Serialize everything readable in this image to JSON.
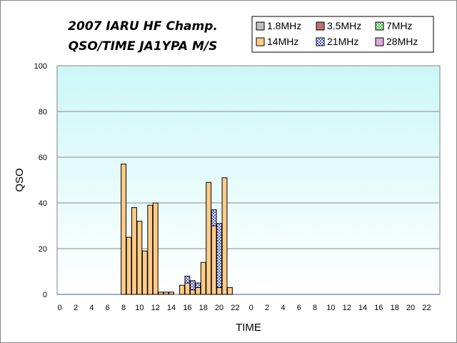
{
  "chart_data": {
    "type": "bar",
    "stacked": true,
    "title": [
      "2007 IARU HF Champ.",
      "QSO/TIME  JA1YPA  M/S"
    ],
    "xlabel": "TIME",
    "ylabel": "QSO",
    "ylim": [
      0,
      100
    ],
    "yticks": [
      "0",
      "20",
      "40",
      "60",
      "80",
      "100"
    ],
    "grid": true,
    "legend_position": "top-right",
    "categories": [
      "0",
      "1",
      "2",
      "3",
      "4",
      "5",
      "6",
      "7",
      "8",
      "9",
      "10",
      "11",
      "12",
      "13",
      "14",
      "15",
      "16",
      "17",
      "18",
      "19",
      "20",
      "21",
      "22",
      "23",
      "0",
      "1",
      "2",
      "3",
      "4",
      "5",
      "6",
      "7",
      "8",
      "9",
      "10",
      "11",
      "12",
      "13",
      "14",
      "15",
      "16",
      "17",
      "18",
      "19",
      "20",
      "21",
      "22",
      "23",
      "0",
      "1",
      "2",
      "3",
      "4",
      "5",
      "6",
      "7",
      "8",
      "9",
      "10",
      "11",
      "12",
      "13",
      "14",
      "15",
      "16",
      "17",
      "18",
      "19",
      "20",
      "21",
      "22",
      "23"
    ],
    "tick_labels": [
      "0",
      "2",
      "4",
      "6",
      "8",
      "10",
      "12",
      "14",
      "16",
      "18",
      "20",
      "22",
      "0",
      "2",
      "4",
      "6",
      "8",
      "10",
      "12",
      "14",
      "16",
      "18",
      "20",
      "22"
    ],
    "series": [
      {
        "name": "1.8MHz",
        "color": "#c0c0c0",
        "pattern": "none",
        "values": [
          0,
          0,
          0,
          0,
          0,
          0,
          0,
          0,
          0,
          0,
          0,
          0,
          0,
          0,
          0,
          0,
          0,
          0,
          0,
          0,
          0,
          0,
          0,
          0,
          0,
          0,
          0,
          0,
          0,
          0,
          0,
          0,
          0,
          0,
          0,
          0,
          0,
          0,
          0,
          0,
          0,
          0,
          0,
          0,
          0,
          0,
          0,
          0,
          0,
          0,
          0,
          0,
          0,
          0,
          0,
          0,
          0,
          0,
          0,
          0,
          0,
          0,
          0,
          0,
          0,
          0,
          0,
          0,
          0,
          0,
          0,
          0
        ]
      },
      {
        "name": "3.5MHz",
        "color": "#c07070",
        "pattern": "none",
        "values": [
          0,
          0,
          0,
          0,
          0,
          0,
          0,
          0,
          0,
          0,
          0,
          0,
          0,
          0,
          0,
          0,
          0,
          0,
          0,
          0,
          0,
          0,
          0,
          0,
          0,
          0,
          0,
          0,
          0,
          0,
          0,
          0,
          0,
          0,
          0,
          0,
          0,
          0,
          0,
          0,
          0,
          0,
          0,
          0,
          0,
          0,
          0,
          0,
          0,
          0,
          0,
          0,
          0,
          0,
          0,
          0,
          0,
          0,
          0,
          0,
          0,
          0,
          0,
          0,
          0,
          0,
          0,
          0,
          0,
          0,
          0,
          0
        ]
      },
      {
        "name": "7MHz",
        "color": "#a6e6a6",
        "pattern": "dots-green",
        "values": [
          0,
          0,
          0,
          0,
          0,
          0,
          0,
          0,
          0,
          0,
          0,
          0,
          0,
          0,
          0,
          0,
          0,
          0,
          0,
          0,
          0,
          0,
          0,
          0,
          0,
          0,
          0,
          0,
          0,
          0,
          0,
          0,
          0,
          0,
          0,
          0,
          0,
          0,
          0,
          0,
          0,
          0,
          0,
          0,
          0,
          0,
          0,
          0,
          0,
          0,
          0,
          0,
          0,
          0,
          0,
          0,
          0,
          0,
          0,
          0,
          0,
          0,
          0,
          0,
          0,
          0,
          0,
          0,
          0,
          0,
          0,
          0
        ]
      },
      {
        "name": "14MHz",
        "color": "#ffcc88",
        "pattern": "none",
        "values": [
          0,
          0,
          0,
          0,
          0,
          0,
          0,
          0,
          0,
          0,
          0,
          0,
          57,
          25,
          38,
          32,
          19,
          39,
          40,
          1,
          1,
          1,
          0,
          4,
          5,
          2,
          3,
          14,
          49,
          30,
          3,
          51,
          3,
          0,
          0,
          0,
          0,
          0,
          0,
          0,
          0,
          0,
          0,
          0,
          0,
          0,
          0,
          0,
          0,
          0,
          0,
          0,
          0,
          0,
          0,
          0,
          0,
          0,
          0,
          0,
          0,
          0,
          0,
          0,
          0,
          0,
          0,
          0,
          0,
          0,
          0,
          0
        ]
      },
      {
        "name": "21MHz",
        "color": "#aab2f2",
        "pattern": "checker-blue",
        "values": [
          0,
          0,
          0,
          0,
          0,
          0,
          0,
          0,
          0,
          0,
          0,
          0,
          0,
          0,
          0,
          0,
          0,
          0,
          0,
          0,
          0,
          0,
          0,
          0,
          3,
          4,
          2,
          0,
          0,
          7,
          28,
          0,
          0,
          0,
          0,
          0,
          0,
          0,
          0,
          0,
          0,
          0,
          0,
          0,
          0,
          0,
          0,
          0,
          0,
          0,
          0,
          0,
          0,
          0,
          0,
          0,
          0,
          0,
          0,
          0,
          0,
          0,
          0,
          0,
          0,
          0,
          0,
          0,
          0,
          0,
          0,
          0
        ]
      },
      {
        "name": "28MHz",
        "color": "#ddaadd",
        "pattern": "none",
        "values": [
          0,
          0,
          0,
          0,
          0,
          0,
          0,
          0,
          0,
          0,
          0,
          0,
          0,
          0,
          0,
          0,
          0,
          0,
          0,
          0,
          0,
          0,
          0,
          0,
          0,
          0,
          0,
          0,
          0,
          0,
          0,
          0,
          0,
          0,
          0,
          0,
          0,
          0,
          0,
          0,
          0,
          0,
          0,
          0,
          0,
          0,
          0,
          0,
          0,
          0,
          0,
          0,
          0,
          0,
          0,
          0,
          0,
          0,
          0,
          0,
          0,
          0,
          0,
          0,
          0,
          0,
          0,
          0,
          0,
          0,
          0,
          0
        ]
      }
    ]
  }
}
